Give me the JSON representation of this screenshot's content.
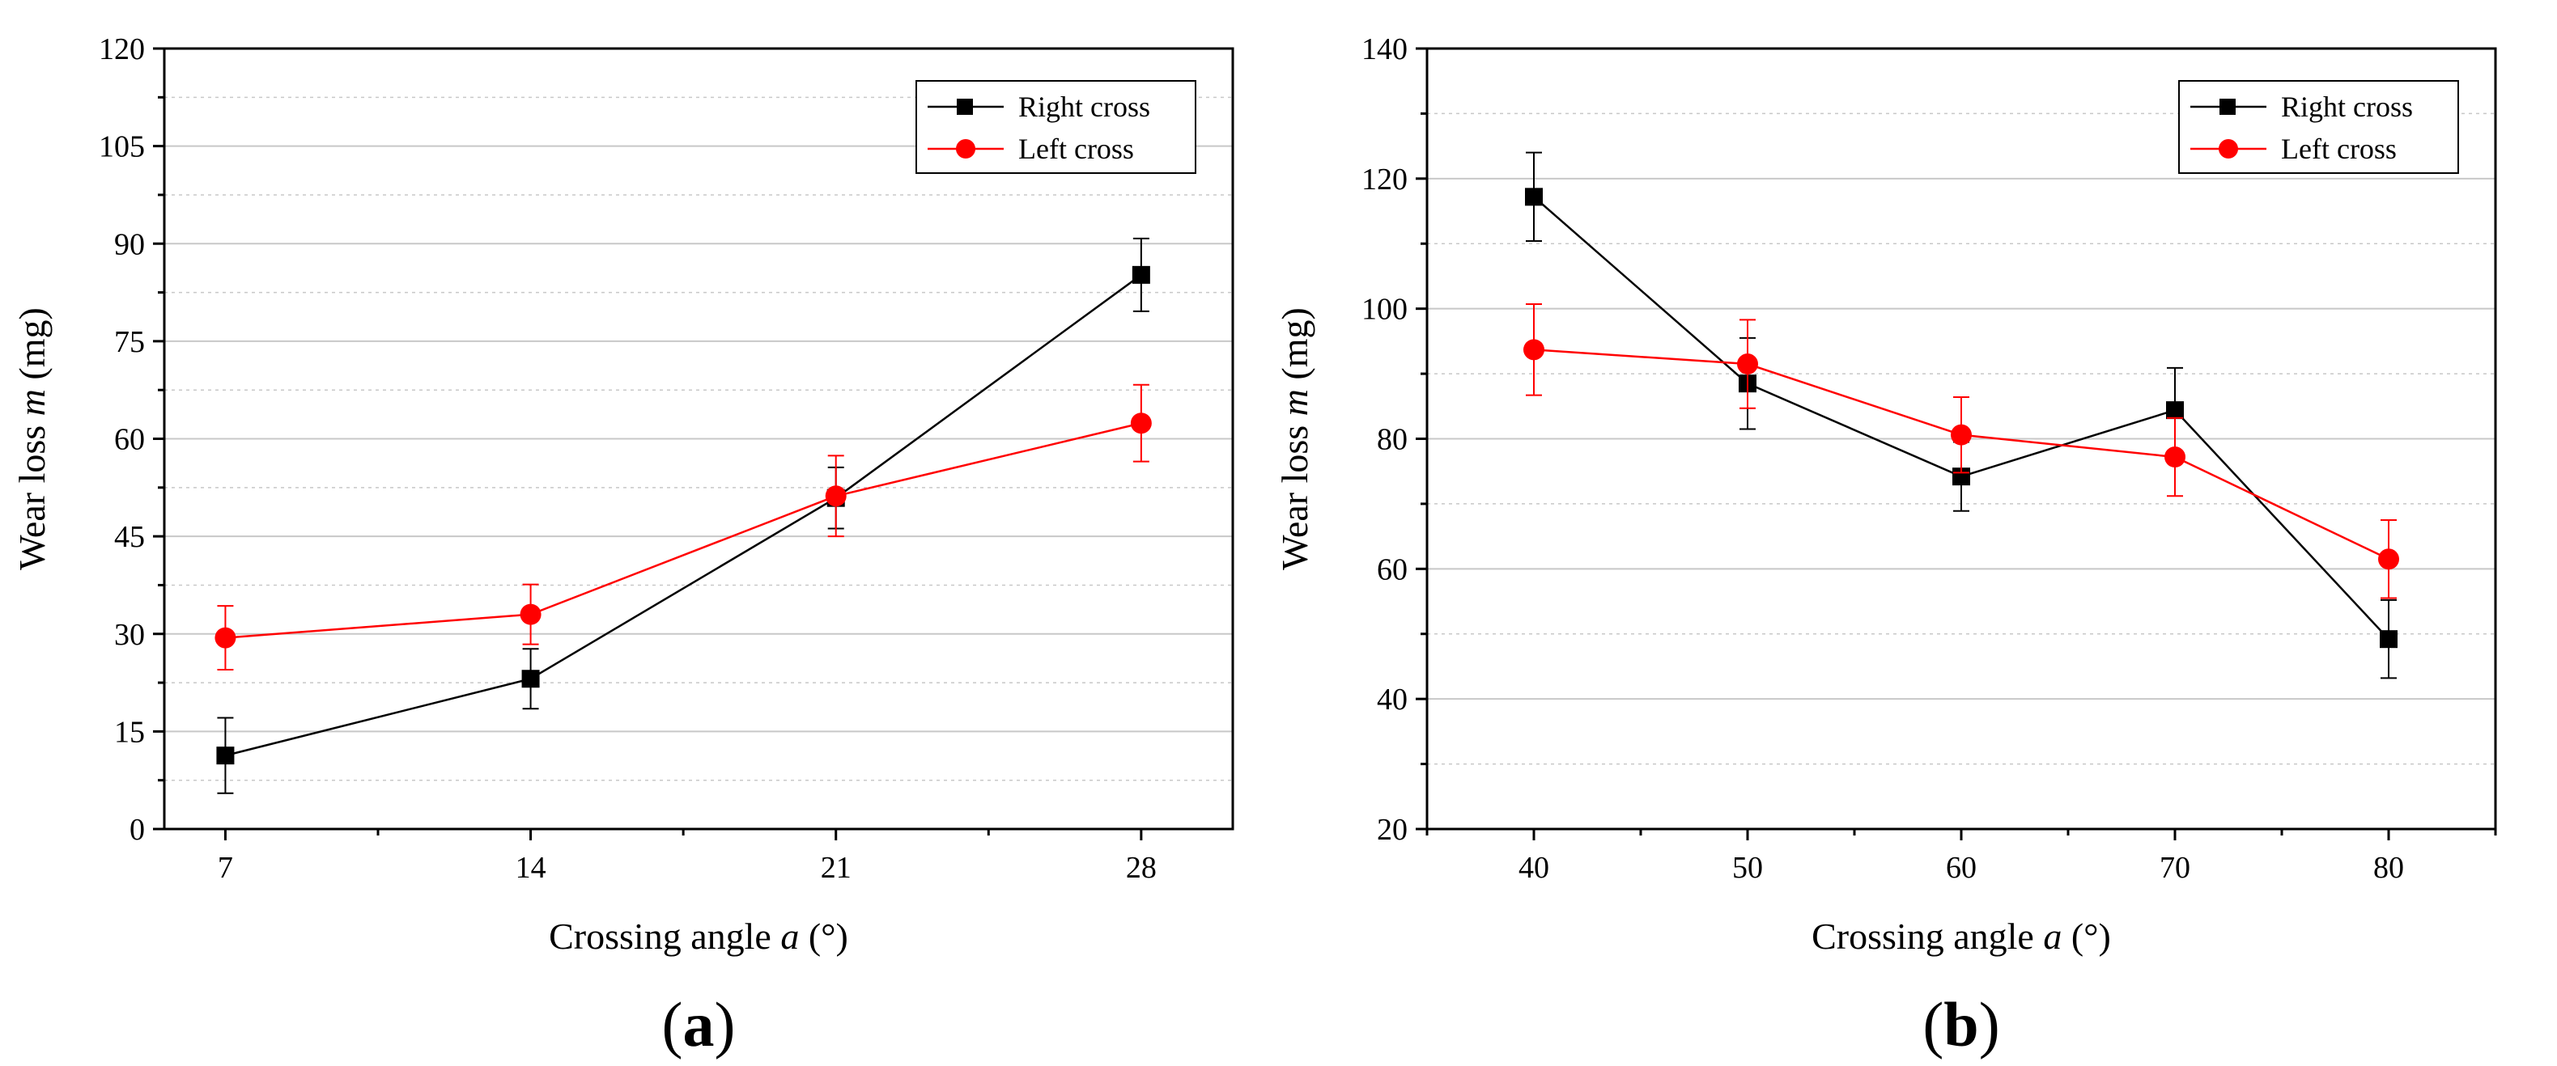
{
  "colors": {
    "right_cross": "#000000",
    "left_cross": "#ff0000",
    "grid": "#c8c8c8"
  },
  "chart_data": [
    {
      "panel": "a",
      "type": "line",
      "xlabel_prefix": "Crossing angle ",
      "xlabel_symbol": "a",
      "xlabel_suffix": " (°)",
      "ylabel_prefix": "Wear loss ",
      "ylabel_symbol": "m",
      "ylabel_suffix": " (mg)",
      "xlim": [
        5.6,
        30.1
      ],
      "ylim": [
        0,
        120
      ],
      "xticks": [
        7,
        14,
        21,
        28
      ],
      "yticks": [
        0,
        15,
        30,
        45,
        60,
        75,
        90,
        105,
        120
      ],
      "grid": true,
      "legend": "top-right",
      "series": [
        {
          "name": "Right cross",
          "marker": "square",
          "x": [
            7,
            14,
            21,
            28
          ],
          "y": [
            11.3,
            23.1,
            50.9,
            85.2
          ],
          "err": [
            5.8,
            4.6,
            4.7,
            5.6
          ]
        },
        {
          "name": "Left cross",
          "marker": "circle",
          "x": [
            7,
            14,
            21,
            28
          ],
          "y": [
            29.4,
            33.0,
            51.2,
            62.4
          ],
          "err": [
            4.9,
            4.6,
            6.2,
            5.9
          ]
        }
      ]
    },
    {
      "panel": "b",
      "type": "line",
      "xlabel_prefix": "Crossing angle ",
      "xlabel_symbol": "a",
      "xlabel_suffix": " (°)",
      "ylabel_prefix": "Wear loss ",
      "ylabel_symbol": "m",
      "ylabel_suffix": " (mg)",
      "xlim": [
        35,
        85
      ],
      "ylim": [
        20,
        140
      ],
      "xticks": [
        40,
        50,
        60,
        70,
        80
      ],
      "yticks": [
        20,
        40,
        60,
        80,
        100,
        120,
        140
      ],
      "grid": true,
      "legend": "top-right",
      "series": [
        {
          "name": "Right cross",
          "marker": "square",
          "x": [
            40,
            50,
            60,
            70,
            80
          ],
          "y": [
            117.2,
            88.5,
            74.2,
            84.4,
            49.2
          ],
          "err": [
            6.8,
            7.0,
            5.3,
            6.5,
            6.0
          ]
        },
        {
          "name": "Left cross",
          "marker": "circle",
          "x": [
            40,
            50,
            60,
            70,
            80
          ],
          "y": [
            93.7,
            91.5,
            80.6,
            77.2,
            61.5
          ],
          "err": [
            7.0,
            6.8,
            5.8,
            6.0,
            6.0
          ]
        }
      ]
    }
  ]
}
